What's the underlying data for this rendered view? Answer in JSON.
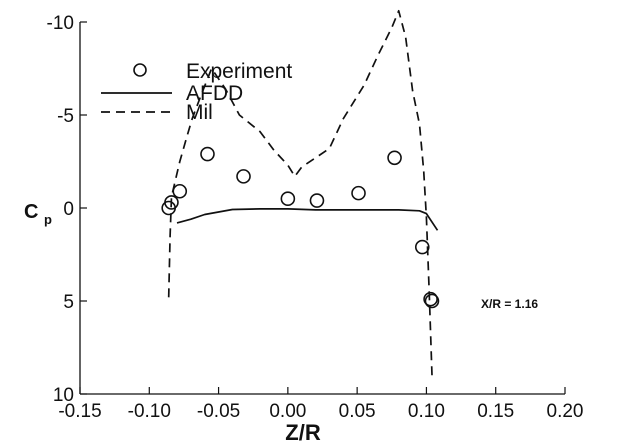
{
  "chart_data": {
    "type": "line",
    "xlabel": "Z/R",
    "ylabel_main": "C",
    "ylabel_sub": "p",
    "annotation": "X/R = 1.16",
    "xlim": [
      -0.15,
      0.2
    ],
    "ylim": [
      -10,
      10
    ],
    "y_inverted": true,
    "grid": false,
    "legend_position": "upper-left",
    "x_ticks": [
      -0.15,
      -0.1,
      -0.05,
      0.0,
      0.05,
      0.1,
      0.15,
      0.2
    ],
    "x_tick_labels": [
      "-0.15",
      "-0.10",
      "-0.05",
      "0.00",
      "0.05",
      "0.10",
      "0.15",
      "0.20"
    ],
    "y_ticks": [
      -10,
      -5,
      0,
      5,
      10
    ],
    "y_tick_labels": [
      "-10",
      "-5",
      "0",
      "5",
      "10"
    ],
    "series": [
      {
        "name": "Experiment",
        "style": "markers-circle",
        "points": [
          [
            -0.086,
            0.0
          ],
          [
            -0.084,
            -0.3
          ],
          [
            -0.078,
            -0.9
          ],
          [
            -0.058,
            -2.9
          ],
          [
            -0.032,
            -1.7
          ],
          [
            0.0,
            -0.5
          ],
          [
            0.021,
            -0.4
          ],
          [
            0.051,
            -0.8
          ],
          [
            0.077,
            -2.7
          ],
          [
            0.097,
            2.1
          ],
          [
            0.103,
            4.9
          ],
          [
            0.104,
            5.0
          ]
        ]
      },
      {
        "name": "AFDD",
        "style": "solid",
        "points": [
          [
            -0.08,
            0.8
          ],
          [
            -0.07,
            0.6
          ],
          [
            -0.06,
            0.35
          ],
          [
            -0.04,
            0.08
          ],
          [
            -0.02,
            0.05
          ],
          [
            0.0,
            0.05
          ],
          [
            0.02,
            0.1
          ],
          [
            0.04,
            0.1
          ],
          [
            0.06,
            0.1
          ],
          [
            0.08,
            0.1
          ],
          [
            0.095,
            0.15
          ],
          [
            0.1,
            0.3
          ],
          [
            0.108,
            1.2
          ]
        ]
      },
      {
        "name": "Mil",
        "style": "dashed",
        "points": [
          [
            -0.086,
            4.8
          ],
          [
            -0.085,
            1.5
          ],
          [
            -0.084,
            -0.6
          ],
          [
            -0.078,
            -2.5
          ],
          [
            -0.073,
            -3.8
          ],
          [
            -0.069,
            -4.8
          ],
          [
            -0.063,
            -6.0
          ],
          [
            -0.055,
            -7.5
          ],
          [
            -0.045,
            -6.4
          ],
          [
            -0.035,
            -5.0
          ],
          [
            -0.02,
            -4.1
          ],
          [
            -0.01,
            -3.1
          ],
          [
            0.0,
            -2.3
          ],
          [
            0.005,
            -1.7
          ],
          [
            0.01,
            -2.2
          ],
          [
            0.02,
            -2.7
          ],
          [
            0.03,
            -3.2
          ],
          [
            0.04,
            -4.8
          ],
          [
            0.055,
            -6.6
          ],
          [
            0.065,
            -8.2
          ],
          [
            0.075,
            -9.7
          ],
          [
            0.08,
            -10.6
          ],
          [
            0.085,
            -9.2
          ],
          [
            0.09,
            -6.3
          ],
          [
            0.095,
            -4.5
          ],
          [
            0.098,
            -2.0
          ],
          [
            0.1,
            0.5
          ],
          [
            0.102,
            4.5
          ],
          [
            0.104,
            9.0
          ]
        ]
      }
    ]
  }
}
